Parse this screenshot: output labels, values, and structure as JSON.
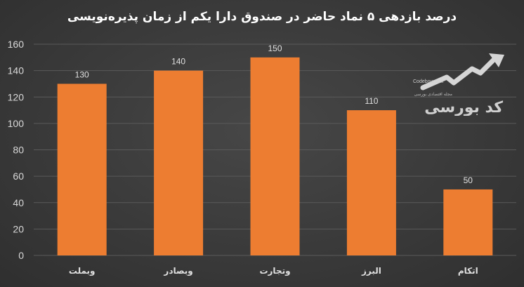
{
  "chart_data": {
    "type": "bar",
    "title": "درصد بازدهی ۵ نماد حاضر در صندوق دارا یکم از زمان پذیره‌نویسی",
    "categories": [
      "وبملت",
      "وبصادر",
      "وتجارت",
      "البرز",
      "اتکام"
    ],
    "values": [
      130,
      140,
      150,
      110,
      50
    ],
    "data_labels": [
      "130",
      "140",
      "150",
      "110",
      "50"
    ],
    "ylim": [
      0,
      160
    ],
    "yticks": [
      "0",
      "20",
      "40",
      "60",
      "80",
      "100",
      "120",
      "140",
      "160"
    ],
    "grid": true,
    "xlabel": "",
    "ylabel": "",
    "bar_color": "#ed7d31"
  },
  "watermark": {
    "site": "Codebourse.ir",
    "tagline": "مجله اقتصادی بورسی",
    "logo_text": "کد بورسی"
  },
  "colors": {
    "background": "#3b3b3b",
    "gridline": "#5a5a5a",
    "text": "#e0e0e0"
  }
}
